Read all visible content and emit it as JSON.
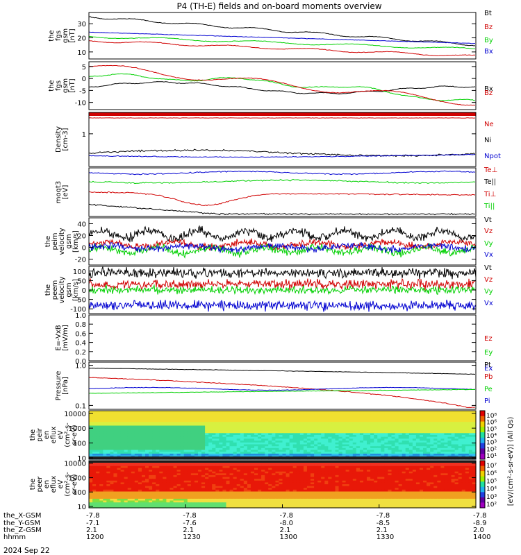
{
  "title": "P4 (TH-E) fields and on-board moments overview",
  "date_label": "2024 Sep 22",
  "colors": {
    "black": "#000000",
    "red": "#d00000",
    "green": "#00d000",
    "blue": "#0000d0"
  },
  "panels": [
    {
      "id": "fgs-gsm",
      "ylabel": [
        "the",
        "fgs",
        "gsm",
        "[nT]"
      ],
      "ticks": [
        10,
        20,
        30
      ],
      "ylim": [
        5,
        38
      ],
      "legend": [
        {
          "text": "Bt",
          "color": "black"
        },
        {
          "text": "Bz",
          "color": "red"
        },
        {
          "text": "By",
          "color": "green"
        },
        {
          "text": "Bx",
          "color": "blue"
        }
      ]
    },
    {
      "id": "fgs-gsm-comp",
      "ylabel": [
        "the",
        "fgs",
        "gsm",
        "[nT]"
      ],
      "ticks": [
        -10,
        -5,
        0,
        5
      ],
      "ylim": [
        -13,
        7
      ],
      "legend": [
        {
          "text": "Bx",
          "color": "black"
        },
        {
          "text": "Bz",
          "color": "red"
        }
      ]
    },
    {
      "id": "density",
      "ylabel": [
        "Density",
        "[cm-3]"
      ],
      "ticks": [
        1
      ],
      "ylim": [
        0.3,
        2.2
      ],
      "legend": [
        {
          "text": "Ne",
          "color": "red"
        },
        {
          "text": "Ni",
          "color": "black"
        },
        {
          "text": "Npot",
          "color": "blue"
        }
      ]
    },
    {
      "id": "temperature",
      "ylabel": [
        "moqt3",
        "[eV]"
      ],
      "ticks": [],
      "ylim": [
        0,
        1
      ],
      "legend": [
        {
          "text": "Te⊥",
          "color": "red"
        },
        {
          "text": "Te||",
          "color": "black"
        },
        {
          "text": "Ti⊥",
          "color": "red"
        },
        {
          "text": "Ti||",
          "color": "green"
        }
      ]
    },
    {
      "id": "peim-velocity",
      "ylabel": [
        "the",
        "peim",
        "velocity",
        "gsm",
        "[km/s]"
      ],
      "ticks": [
        -20,
        0,
        20,
        40
      ],
      "ylim": [
        -30,
        50
      ],
      "legend": [
        {
          "text": "Vt",
          "color": "black"
        },
        {
          "text": "Vz",
          "color": "red"
        },
        {
          "text": "Vy",
          "color": "green"
        },
        {
          "text": "Vx",
          "color": "blue"
        }
      ]
    },
    {
      "id": "peem-velocity",
      "ylabel": [
        "the",
        "peem",
        "velocity",
        "gsm",
        "[km/s]"
      ],
      "ticks": [
        -100,
        -50,
        0,
        50,
        100
      ],
      "ylim": [
        -125,
        125
      ],
      "legend": [
        {
          "text": "Vt",
          "color": "black"
        },
        {
          "text": "Vz",
          "color": "red"
        },
        {
          "text": "Vy",
          "color": "green"
        },
        {
          "text": "Vx",
          "color": "blue"
        }
      ]
    },
    {
      "id": "efield",
      "ylabel": [
        "E=-VxB",
        "[mV/m]"
      ],
      "ticks": [
        0.0,
        0.2,
        0.4,
        0.6,
        0.8,
        1.0
      ],
      "ylim": [
        0,
        1
      ],
      "legend": [
        {
          "text": "Ez",
          "color": "red"
        },
        {
          "text": "Ey",
          "color": "green"
        },
        {
          "text": "Ex",
          "color": "blue"
        }
      ]
    },
    {
      "id": "pressure",
      "ylabel": [
        "Pressure",
        "[nPa]"
      ],
      "ticks": [
        0.1,
        1.0
      ],
      "ylim": [
        0.08,
        1.2
      ],
      "legend": [
        {
          "text": "Pt",
          "color": "black"
        },
        {
          "text": "Pb",
          "color": "red"
        },
        {
          "text": "Pe",
          "color": "green"
        },
        {
          "text": "Pi",
          "color": "blue"
        }
      ]
    },
    {
      "id": "peir-eflux",
      "ylabel": [
        "the",
        "peir",
        "en",
        "eflux",
        "eV",
        "(cm²-s-",
        "sr-eV)"
      ],
      "ticks": [
        10,
        100,
        1000,
        10000
      ],
      "ylim": [
        8,
        15000
      ]
    },
    {
      "id": "peer-eflux",
      "ylabel": [
        "the",
        "peer",
        "en",
        "eflux",
        "eV",
        "(cm²-s-",
        "sr-eV)"
      ],
      "ticks": [
        10,
        100,
        1000,
        10000
      ],
      "ylim": [
        8,
        15000
      ]
    }
  ],
  "colorbar_label": "[eV/(cm²-s-sr-eV)] (All Qs)",
  "colorbar1_ticks": [
    "10⁸",
    "10⁶",
    "10⁵",
    "10⁴",
    "10³",
    "10²",
    "10¹"
  ],
  "colorbar2_ticks": [
    "10⁷",
    "10⁶",
    "10⁵",
    "10⁴",
    "10³",
    "10²"
  ],
  "x_axis": {
    "row_labels": [
      "the_X-GSM",
      "the_Y-GSM",
      "the_Z-GSM",
      "hhmm"
    ],
    "ticks": [
      {
        "vals": [
          "-7.8",
          "-7.1",
          "2.1",
          "1200"
        ]
      },
      {
        "vals": [
          "-7.8",
          "-7.6",
          "2.1",
          "1230"
        ]
      },
      {
        "vals": [
          "-7.8",
          "-8.0",
          "2.1",
          "1300"
        ]
      },
      {
        "vals": [
          "-7.8",
          "-8.5",
          "2.1",
          "1330"
        ]
      },
      {
        "vals": [
          "-7.8",
          "-8.9",
          "2.0",
          "1400"
        ]
      }
    ]
  },
  "chart_data": {
    "type": "line",
    "title": "P4 (TH-E) fields and on-board moments overview",
    "x_time_range": [
      "12:00",
      "14:00"
    ],
    "series_summary": {
      "fgs_gsm": {
        "Bt": {
          "start": 35,
          "end": 15
        },
        "Bz": {
          "start": 18,
          "end": 6
        },
        "By": {
          "start": 21,
          "end": 12
        },
        "Bx": {
          "start": 24,
          "end": 15
        }
      },
      "fgs_gsm_comp": {
        "Bx": {
          "start": -3,
          "end": -5
        },
        "Bz": {
          "start": 5,
          "end": -10
        }
      },
      "density": {
        "Ne": {
          "level": 2.0
        },
        "Ni": {
          "level": 0.42
        },
        "Npot": {
          "level": 0.38
        }
      },
      "peim_velocity": {
        "Vt": {
          "mean": 20
        },
        "Vz": {
          "mean": 5
        },
        "Vy": {
          "mean": -5
        },
        "Vx": {
          "mean": 0
        }
      },
      "peem_velocity": {
        "Vt": {
          "mean": 90
        },
        "Vz": {
          "mean": 30
        },
        "Vy": {
          "mean": 0
        },
        "Vx": {
          "mean": -80
        }
      },
      "pressure": {
        "Pt": {
          "start": 0.85,
          "end": 0.6
        },
        "Pb": {
          "start": 0.5,
          "end": 0.1
        },
        "Pe": {
          "start": 0.3,
          "end": 0.25
        },
        "Pi": {
          "start": 0.25,
          "end": 0.2
        }
      }
    }
  }
}
